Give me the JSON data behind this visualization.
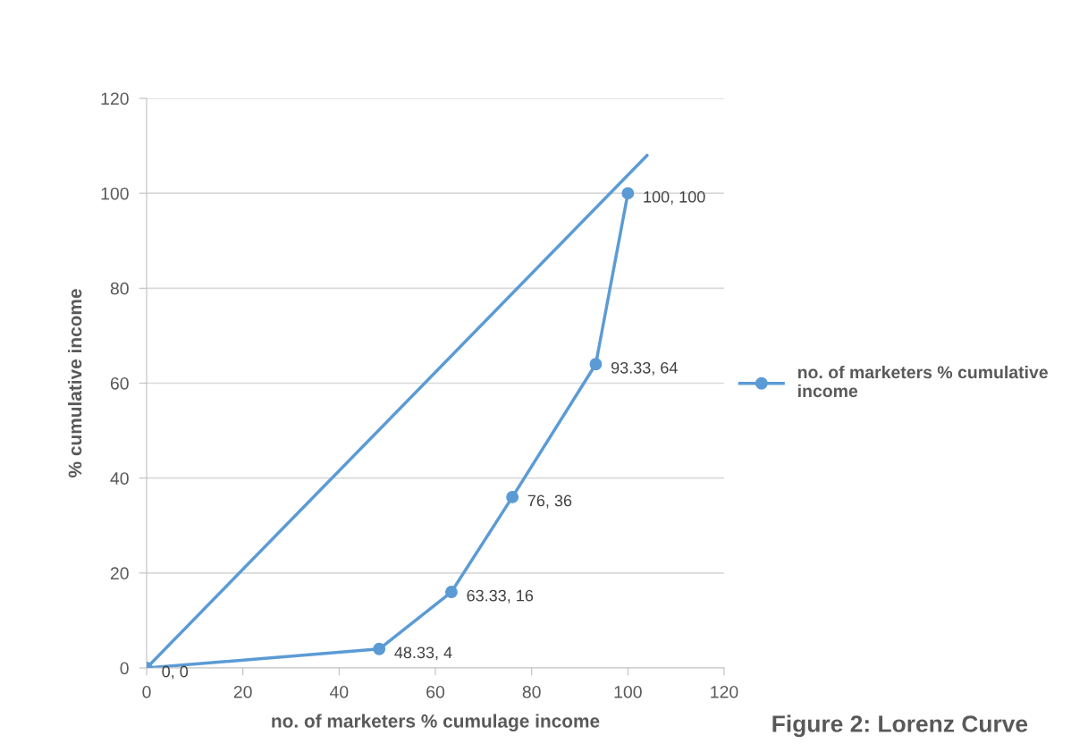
{
  "chart_data": {
    "type": "line",
    "xlabel": "no. of marketers % cumulage income",
    "ylabel": "% cumulative income",
    "series": [
      {
        "name": "no. of marketers % cumulative income",
        "color": "#5b9bd5",
        "marker": "circle",
        "x": [
          0,
          48.33,
          63.33,
          76,
          93.33,
          100
        ],
        "values": [
          0,
          4,
          16,
          36,
          64,
          100
        ],
        "value_labels": [
          "0, 0",
          "48.33, 4",
          "63.33, 16",
          "76, 36",
          "93.33, 64",
          "100, 100"
        ]
      },
      {
        "color": "#5b9bd5",
        "marker": "none",
        "x": [
          0,
          104
        ],
        "values": [
          0,
          108
        ]
      }
    ],
    "xlim": [
      0,
      120
    ],
    "xticks": [
      0,
      20,
      40,
      60,
      80,
      100,
      120
    ],
    "ylim": [
      0,
      120
    ],
    "yticks": [
      0,
      20,
      40,
      60,
      80,
      100,
      120
    ],
    "grid": "y",
    "legend": "right",
    "annotations": [
      "Figure 2: Lorenz Curve"
    ]
  }
}
